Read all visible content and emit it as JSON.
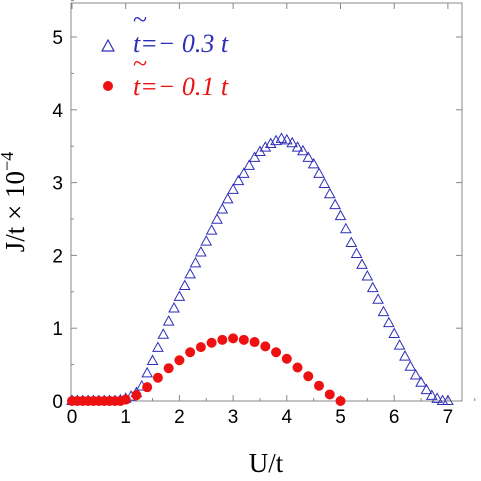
{
  "chart_data": {
    "type": "scatter",
    "xlabel": "U/t",
    "ylabel": "J/t × 10",
    "ylabel_exponent": "−4",
    "xlim": [
      0,
      7.5
    ],
    "ylim": [
      0,
      5.5
    ],
    "x_ticks": [
      "0",
      "1",
      "2",
      "3",
      "4",
      "5",
      "6",
      "7"
    ],
    "y_ticks": [
      "0",
      "1",
      "2",
      "3",
      "4",
      "5"
    ],
    "grid": false,
    "legend_position": "top-left",
    "series": [
      {
        "name": "t̃=− 0.3 t",
        "tilde": "~",
        "label": "t=− 0.3 t",
        "marker": "open-triangle",
        "color": "#2e2eb8",
        "x": [
          0.0,
          0.1,
          0.2,
          0.3,
          0.4,
          0.5,
          0.6,
          0.7,
          0.8,
          0.9,
          1.0,
          1.1,
          1.2,
          1.3,
          1.4,
          1.5,
          1.6,
          1.7,
          1.8,
          1.9,
          2.0,
          2.1,
          2.2,
          2.3,
          2.4,
          2.5,
          2.6,
          2.7,
          2.8,
          2.9,
          3.0,
          3.1,
          3.2,
          3.3,
          3.4,
          3.5,
          3.6,
          3.7,
          3.8,
          3.9,
          4.0,
          4.1,
          4.2,
          4.3,
          4.4,
          4.5,
          4.6,
          4.7,
          4.8,
          4.9,
          5.0,
          5.1,
          5.2,
          5.3,
          5.4,
          5.5,
          5.6,
          5.7,
          5.8,
          5.9,
          6.0,
          6.1,
          6.2,
          6.3,
          6.4,
          6.5,
          6.6,
          6.7,
          6.8,
          6.9,
          7.0
        ],
        "y": [
          0.0,
          0.0,
          0.0,
          0.0,
          0.0,
          0.0,
          0.0,
          0.0,
          0.0,
          0.01,
          0.03,
          0.06,
          0.11,
          0.2,
          0.38,
          0.55,
          0.73,
          0.91,
          1.09,
          1.27,
          1.43,
          1.58,
          1.74,
          1.89,
          2.04,
          2.19,
          2.34,
          2.49,
          2.63,
          2.77,
          2.9,
          3.02,
          3.12,
          3.23,
          3.34,
          3.42,
          3.48,
          3.53,
          3.57,
          3.6,
          3.58,
          3.54,
          3.48,
          3.43,
          3.34,
          3.25,
          3.12,
          2.98,
          2.84,
          2.69,
          2.54,
          2.36,
          2.17,
          2.02,
          1.87,
          1.71,
          1.55,
          1.39,
          1.22,
          1.07,
          0.92,
          0.76,
          0.61,
          0.47,
          0.35,
          0.25,
          0.15,
          0.07,
          0.03,
          0.0,
          0.0
        ]
      },
      {
        "name": "t̃=− 0.1 t",
        "tilde": "~",
        "label": "t=− 0.1 t",
        "marker": "filled-circle",
        "color": "#ee1111",
        "x": [
          0.0,
          0.1,
          0.2,
          0.3,
          0.4,
          0.5,
          0.6,
          0.7,
          0.8,
          0.9,
          1.0,
          1.2,
          1.4,
          1.6,
          1.8,
          2.0,
          2.2,
          2.4,
          2.6,
          2.8,
          3.0,
          3.2,
          3.4,
          3.6,
          3.8,
          4.0,
          4.2,
          4.4,
          4.6,
          4.8,
          5.0
        ],
        "y": [
          0.0,
          0.0,
          0.0,
          0.0,
          0.0,
          0.0,
          0.0,
          0.0,
          0.0,
          0.0,
          0.02,
          0.08,
          0.19,
          0.32,
          0.45,
          0.56,
          0.67,
          0.74,
          0.8,
          0.84,
          0.86,
          0.84,
          0.81,
          0.75,
          0.67,
          0.58,
          0.46,
          0.34,
          0.21,
          0.09,
          0.0
        ]
      }
    ]
  }
}
